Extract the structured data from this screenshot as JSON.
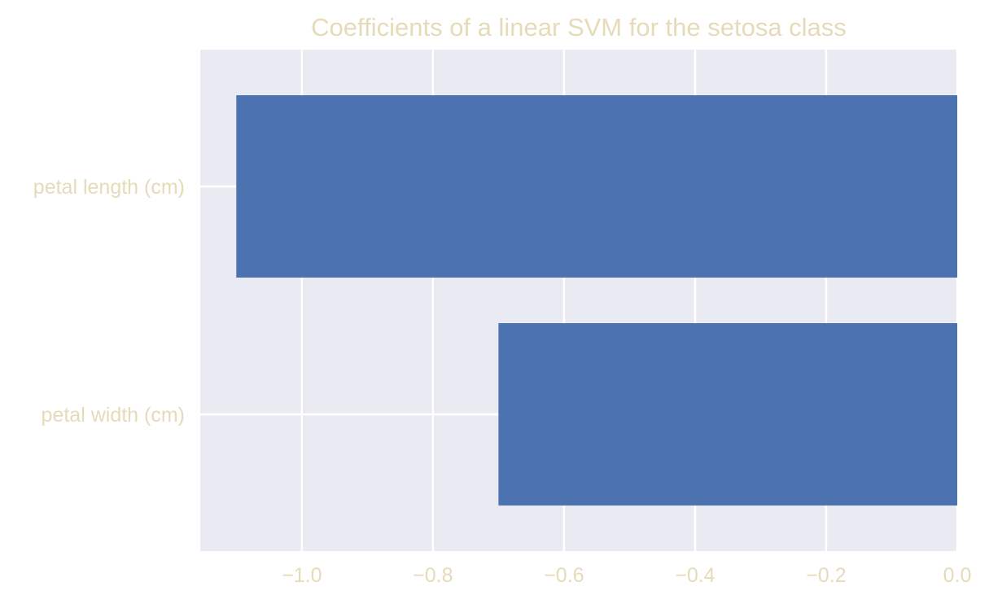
{
  "chart_data": {
    "type": "bar",
    "orientation": "horizontal",
    "title": "Coefficients of a linear SVM for the setosa class",
    "xlabel": "",
    "ylabel": "",
    "categories": [
      "petal length (cm)",
      "petal width (cm)"
    ],
    "values": [
      -1.1,
      -0.7
    ],
    "xlim": [
      -1.155,
      0.0
    ],
    "xticks": [
      -1.0,
      -0.8,
      -0.6,
      -0.4,
      -0.2,
      0.0
    ],
    "xtick_labels": [
      "−1.0",
      "−0.8",
      "−0.6",
      "−0.4",
      "−0.2",
      "0.0"
    ],
    "grid": true,
    "legend": "none",
    "colors": {
      "bar": "#4c72b0",
      "plot_background": "#eaeaf2",
      "grid": "#ffffff",
      "text": "#e6dbb9"
    }
  }
}
